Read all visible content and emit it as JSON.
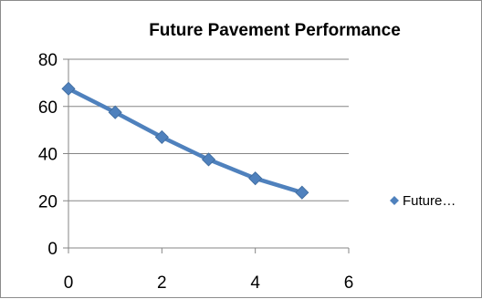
{
  "chart_data": {
    "type": "line",
    "title": "Future Pavement Performance",
    "xlabel": "",
    "ylabel": "",
    "x_ticks": [
      "0",
      "2",
      "4",
      "6"
    ],
    "y_ticks": [
      "0",
      "20",
      "40",
      "60",
      "80"
    ],
    "xlim": [
      0,
      6
    ],
    "ylim": [
      0,
      80
    ],
    "grid": "horizontal major gridlines",
    "legend_position": "right",
    "series": [
      {
        "name": "Future…",
        "color": "#4f81bd",
        "marker": "diamond",
        "x": [
          0,
          1,
          2,
          3,
          4,
          5
        ],
        "y": [
          67.5,
          57.5,
          47,
          37.5,
          29.5,
          23.5
        ]
      }
    ]
  }
}
